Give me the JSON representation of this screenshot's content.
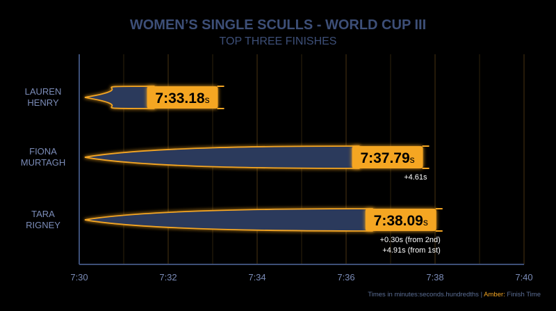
{
  "chart_data": {
    "type": "bar",
    "title": "WOMEN’S SINGLE SCULLS - WORLD CUP III",
    "subtitle": "TOP THREE FINISHES",
    "x_ticks": [
      "7:30",
      "7:32",
      "7:34",
      "7:36",
      "7:38",
      "7:40"
    ],
    "xlim": [
      "7:30",
      "7:40"
    ],
    "grid": true,
    "series": [
      {
        "athlete": [
          "LAUREN",
          "HENRY"
        ],
        "time": "7:33.18",
        "time_seconds": 453.18,
        "unit": "s",
        "notes": []
      },
      {
        "athlete": [
          "FIONA",
          "MURTAGH"
        ],
        "time": "7:37.79",
        "time_seconds": 457.79,
        "unit": "s",
        "notes": [
          "+4.61s"
        ]
      },
      {
        "athlete": [
          "TARA",
          "RIGNEY"
        ],
        "time": "7:38.09",
        "time_seconds": 458.09,
        "unit": "s",
        "notes": [
          "+0.30s (from 2nd)",
          "+4.91s (from 1st)"
        ]
      }
    ]
  },
  "footnote": {
    "main": "Times in minutes:seconds.hundredths | ",
    "amber_label": "Amber:",
    "amber_desc": " Finish Time"
  },
  "colors": {
    "background": "#000000",
    "amber": "#f5a623",
    "boat_fill": "#2b3a5c",
    "text_blue": "#3d4f78",
    "label_blue": "#7b8cb8",
    "grid": "#3a2a10"
  }
}
